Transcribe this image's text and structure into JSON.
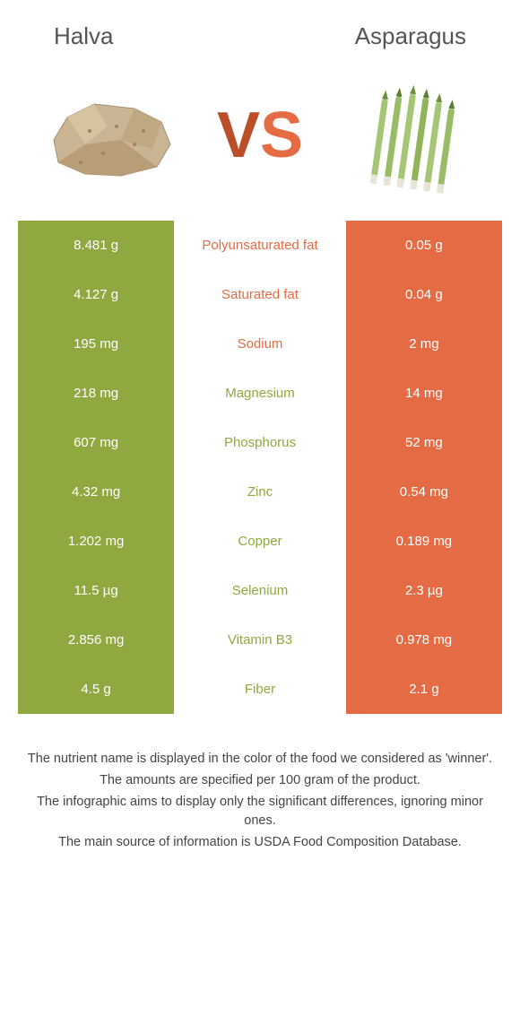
{
  "food_left": {
    "name": "Halva",
    "color": "#8fa83f"
  },
  "food_right": {
    "name": "Asparagus",
    "color": "#e56b44"
  },
  "vs": {
    "v_color": "#bb4f2a",
    "s_color": "#e56b44"
  },
  "nutrients": [
    {
      "label": "Polyunsaturated fat",
      "left": "8.481 g",
      "right": "0.05 g",
      "winner": "right"
    },
    {
      "label": "Saturated fat",
      "left": "4.127 g",
      "right": "0.04 g",
      "winner": "right"
    },
    {
      "label": "Sodium",
      "left": "195 mg",
      "right": "2 mg",
      "winner": "right"
    },
    {
      "label": "Magnesium",
      "left": "218 mg",
      "right": "14 mg",
      "winner": "left"
    },
    {
      "label": "Phosphorus",
      "left": "607 mg",
      "right": "52 mg",
      "winner": "left"
    },
    {
      "label": "Zinc",
      "left": "4.32 mg",
      "right": "0.54 mg",
      "winner": "left"
    },
    {
      "label": "Copper",
      "left": "1.202 mg",
      "right": "0.189 mg",
      "winner": "left"
    },
    {
      "label": "Selenium",
      "left": "11.5 µg",
      "right": "2.3 µg",
      "winner": "left"
    },
    {
      "label": "Vitamin B3",
      "left": "2.856 mg",
      "right": "0.978 mg",
      "winner": "left"
    },
    {
      "label": "Fiber",
      "left": "4.5 g",
      "right": "2.1 g",
      "winner": "left"
    }
  ],
  "footnotes": [
    "The nutrient name is displayed in the color of the food we considered as 'winner'.",
    "The amounts are specified per 100 gram of the product.",
    "The infographic aims to display only the significant differences, ignoring minor ones.",
    "The main source of information is USDA Food Composition Database."
  ]
}
